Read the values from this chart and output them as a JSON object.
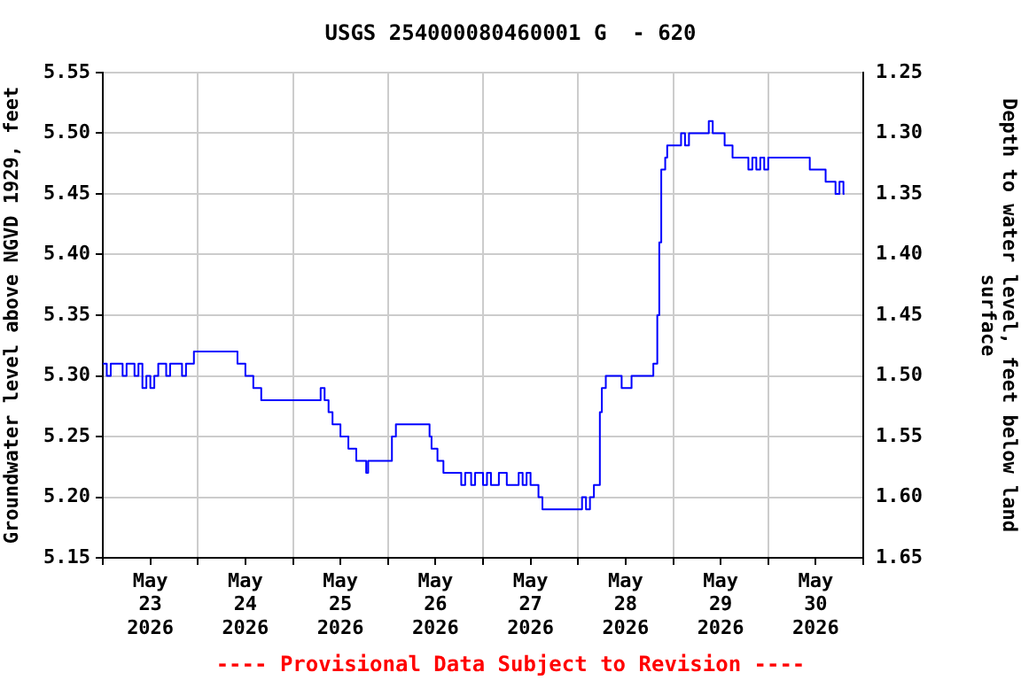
{
  "chart_data": {
    "type": "step",
    "title": "USGS 254000080460001 G  - 620",
    "ylabel": "Groundwater level above NGVD 1929, feet",
    "y2label": "Depth to water level, feet below land\nsurface",
    "annotations": [
      "---- Provisional Data Subject to Revision ----"
    ],
    "xlim": [
      "2026-05-23T00:00",
      "2026-05-31T00:00"
    ],
    "xticks": [
      {
        "value": "2026-05-23T00:00",
        "label": null
      },
      {
        "value": "2026-05-23T12:00",
        "label": "May\n23\n2026"
      },
      {
        "value": "2026-05-24T00:00",
        "label": null
      },
      {
        "value": "2026-05-24T12:00",
        "label": "May\n24\n2026"
      },
      {
        "value": "2026-05-25T00:00",
        "label": null
      },
      {
        "value": "2026-05-25T12:00",
        "label": "May\n25\n2026"
      },
      {
        "value": "2026-05-26T00:00",
        "label": null
      },
      {
        "value": "2026-05-26T12:00",
        "label": "May\n26\n2026"
      },
      {
        "value": "2026-05-27T00:00",
        "label": null
      },
      {
        "value": "2026-05-27T12:00",
        "label": "May\n27\n2026"
      },
      {
        "value": "2026-05-28T00:00",
        "label": null
      },
      {
        "value": "2026-05-28T12:00",
        "label": "May\n28\n2026"
      },
      {
        "value": "2026-05-29T00:00",
        "label": null
      },
      {
        "value": "2026-05-29T12:00",
        "label": "May\n29\n2026"
      },
      {
        "value": "2026-05-30T00:00",
        "label": null
      },
      {
        "value": "2026-05-30T12:00",
        "label": "May\n30\n2026"
      },
      {
        "value": "2026-05-31T00:00",
        "label": null
      }
    ],
    "ylim": [
      5.15,
      5.55
    ],
    "yticks": [
      {
        "value": 5.15,
        "label": "5.15"
      },
      {
        "value": 5.2,
        "label": "5.20"
      },
      {
        "value": 5.25,
        "label": "5.25"
      },
      {
        "value": 5.3,
        "label": "5.30"
      },
      {
        "value": 5.35,
        "label": "5.35"
      },
      {
        "value": 5.4,
        "label": "5.40"
      },
      {
        "value": 5.45,
        "label": "5.45"
      },
      {
        "value": 5.5,
        "label": "5.50"
      },
      {
        "value": 5.55,
        "label": "5.55"
      }
    ],
    "y2lim": [
      1.65,
      1.25
    ],
    "y2ticks": [
      {
        "value": 1.25,
        "label": "1.25"
      },
      {
        "value": 1.3,
        "label": "1.30"
      },
      {
        "value": 1.35,
        "label": "1.35"
      },
      {
        "value": 1.4,
        "label": "1.40"
      },
      {
        "value": 1.45,
        "label": "1.45"
      },
      {
        "value": 1.5,
        "label": "1.50"
      },
      {
        "value": 1.55,
        "label": "1.55"
      },
      {
        "value": 1.6,
        "label": "1.60"
      },
      {
        "value": 1.65,
        "label": "1.65"
      }
    ],
    "grid": true,
    "legend": false,
    "marker": "none",
    "line_style": "solid",
    "series": [
      {
        "color": "#0000ff",
        "x": [
          "2026-05-23T00:00",
          "2026-05-23T01:00",
          "2026-05-23T02:00",
          "2026-05-23T05:00",
          "2026-05-23T06:00",
          "2026-05-23T08:00",
          "2026-05-23T09:00",
          "2026-05-23T10:00",
          "2026-05-23T11:00",
          "2026-05-23T12:00",
          "2026-05-23T13:00",
          "2026-05-23T14:00",
          "2026-05-23T16:00",
          "2026-05-23T17:00",
          "2026-05-23T20:00",
          "2026-05-23T21:00",
          "2026-05-23T23:00",
          "2026-05-24T10:00",
          "2026-05-24T12:00",
          "2026-05-24T14:00",
          "2026-05-24T16:00",
          "2026-05-25T07:00",
          "2026-05-25T08:00",
          "2026-05-25T09:00",
          "2026-05-25T10:00",
          "2026-05-25T12:00",
          "2026-05-25T14:00",
          "2026-05-25T16:00",
          "2026-05-25T18:30",
          "2026-05-25T19:00",
          "2026-05-26T01:00",
          "2026-05-26T02:00",
          "2026-05-26T10:30",
          "2026-05-26T11:00",
          "2026-05-26T12:30",
          "2026-05-26T14:00",
          "2026-05-26T15:00",
          "2026-05-26T18:30",
          "2026-05-26T19:30",
          "2026-05-26T21:00",
          "2026-05-26T22:00",
          "2026-05-27T00:00",
          "2026-05-27T01:00",
          "2026-05-27T02:00",
          "2026-05-27T04:00",
          "2026-05-27T06:00",
          "2026-05-27T09:00",
          "2026-05-27T10:00",
          "2026-05-27T11:00",
          "2026-05-27T12:00",
          "2026-05-27T14:00",
          "2026-05-27T15:00",
          "2026-05-27T17:30",
          "2026-05-28T01:00",
          "2026-05-28T02:00",
          "2026-05-28T03:00",
          "2026-05-28T04:00",
          "2026-05-28T05:30",
          "2026-05-28T06:00",
          "2026-05-28T07:00",
          "2026-05-28T11:00",
          "2026-05-28T13:30",
          "2026-05-28T19:00",
          "2026-05-28T20:00",
          "2026-05-28T20:30",
          "2026-05-28T21:00",
          "2026-05-28T22:00",
          "2026-05-28T22:30",
          "2026-05-29T02:00",
          "2026-05-29T03:00",
          "2026-05-29T04:00",
          "2026-05-29T09:00",
          "2026-05-29T10:00",
          "2026-05-29T13:00",
          "2026-05-29T15:00",
          "2026-05-29T19:00",
          "2026-05-29T20:00",
          "2026-05-29T21:00",
          "2026-05-29T22:00",
          "2026-05-29T23:00",
          "2026-05-30T00:00",
          "2026-05-30T10:30",
          "2026-05-30T14:30",
          "2026-05-30T17:00",
          "2026-05-30T18:00",
          "2026-05-30T19:00",
          "2026-05-30T19:15"
        ],
        "values": [
          5.31,
          5.3,
          5.31,
          5.3,
          5.31,
          5.3,
          5.31,
          5.29,
          5.3,
          5.29,
          5.3,
          5.31,
          5.3,
          5.31,
          5.3,
          5.31,
          5.32,
          5.31,
          5.3,
          5.29,
          5.28,
          5.29,
          5.28,
          5.27,
          5.26,
          5.25,
          5.24,
          5.23,
          5.22,
          5.23,
          5.25,
          5.26,
          5.25,
          5.24,
          5.23,
          5.22,
          5.22,
          5.21,
          5.22,
          5.21,
          5.22,
          5.21,
          5.22,
          5.21,
          5.22,
          5.21,
          5.22,
          5.21,
          5.22,
          5.21,
          5.2,
          5.19,
          5.19,
          5.2,
          5.19,
          5.2,
          5.21,
          5.27,
          5.29,
          5.3,
          5.29,
          5.3,
          5.31,
          5.35,
          5.41,
          5.47,
          5.48,
          5.49,
          5.5,
          5.49,
          5.5,
          5.51,
          5.5,
          5.49,
          5.48,
          5.47,
          5.48,
          5.47,
          5.48,
          5.47,
          5.48,
          5.47,
          5.46,
          5.45,
          5.46,
          5.45,
          5.45
        ]
      }
    ]
  }
}
